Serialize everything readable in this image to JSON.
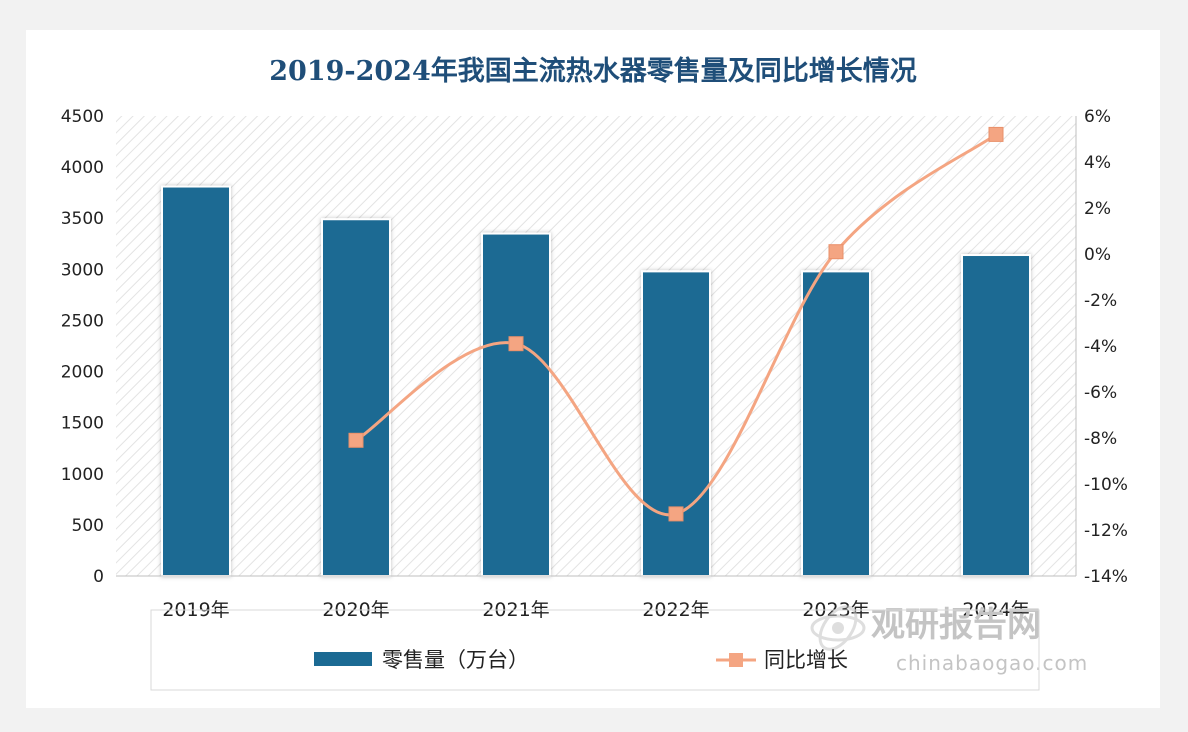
{
  "chart_data": {
    "type": "bar",
    "title": "2019-2024年我国主流热水器零售量及同比增长情况",
    "categories": [
      "2019年",
      "2020年",
      "2021年",
      "2022年",
      "2023年",
      "2024年"
    ],
    "series": [
      {
        "name": "零售量（万台）",
        "type": "bar",
        "axis": "left",
        "color": "#1b6a93",
        "values": [
          3810,
          3490,
          3350,
          2980,
          2980,
          3140
        ]
      },
      {
        "name": "同比增长",
        "type": "line",
        "axis": "right",
        "color": "#f4a582",
        "unit": "%",
        "points": [
          {
            "x": "2020年",
            "y": -8.1
          },
          {
            "x": "2021年",
            "y": -3.9
          },
          {
            "x": "2022年",
            "y": -11.3
          },
          {
            "x": "2023年",
            "y": 0.1
          },
          {
            "x": "2024年",
            "y": 5.2
          }
        ]
      }
    ],
    "y_left": {
      "ylim": [
        0,
        4500
      ],
      "ticks": [
        "0",
        "500",
        "1000",
        "1500",
        "2000",
        "2500",
        "3000",
        "3500",
        "4000",
        "4500"
      ]
    },
    "y_right": {
      "ylim": [
        -14,
        6
      ],
      "ticks": [
        "-14%",
        "-12%",
        "-10%",
        "-8%",
        "-6%",
        "-4%",
        "-2%",
        "0%",
        "2%",
        "4%",
        "6%"
      ]
    },
    "legend": {
      "placement": "bottom"
    },
    "grid": false
  },
  "watermark": {
    "text_cn": "观研报告网",
    "text_en": "chinabaogao.com"
  }
}
